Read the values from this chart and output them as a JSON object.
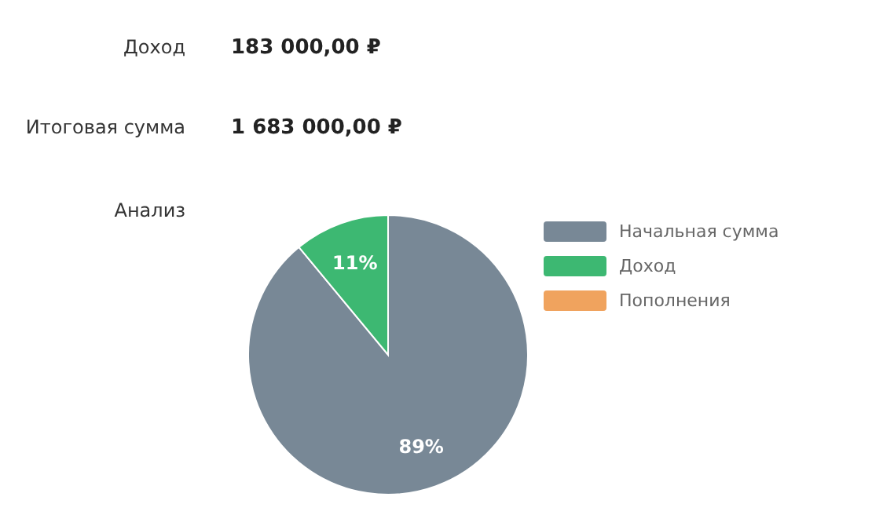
{
  "chart_data": {
    "type": "pie",
    "categories": [
      "Начальная сумма",
      "Доход",
      "Пополнения"
    ],
    "values": [
      89,
      11,
      0
    ],
    "colors": [
      "#788896",
      "#3db872",
      "#f0a35e"
    ],
    "value_labels": [
      "89%",
      "11%",
      null
    ],
    "legend": "right",
    "annotations": [
      "Доход",
      "183 000,00 ₽",
      "Итоговая сумма",
      "1 683 000,00 ₽",
      "Анализ"
    ]
  }
}
